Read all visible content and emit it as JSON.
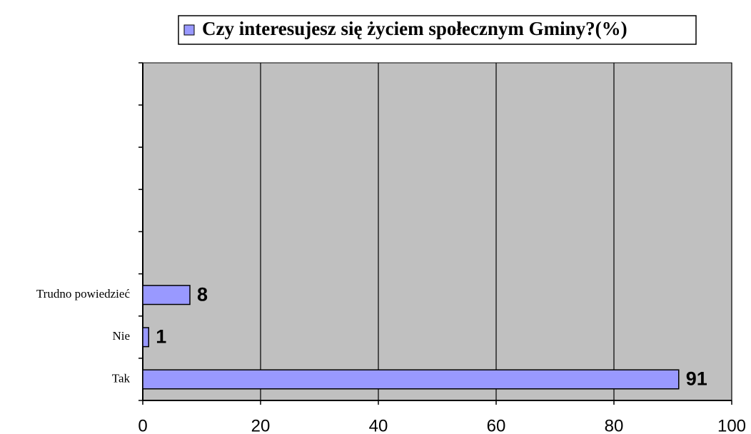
{
  "chart_data": {
    "type": "bar",
    "orientation": "horizontal",
    "legend_label": "Czy interesujesz się życiem społecznym Gminy?(%)",
    "categories": [
      "Tak",
      "Nie",
      "Trudno powiedzieć",
      null,
      null,
      null,
      null,
      null
    ],
    "values": [
      91,
      1,
      8,
      null,
      null,
      null,
      null,
      null
    ],
    "color": "#9999ff",
    "plot_background": "#c0c0c0",
    "xlim": [
      0,
      100
    ],
    "xticks": [
      0,
      20,
      40,
      60,
      80,
      100
    ],
    "grid": true,
    "legend": "top"
  }
}
